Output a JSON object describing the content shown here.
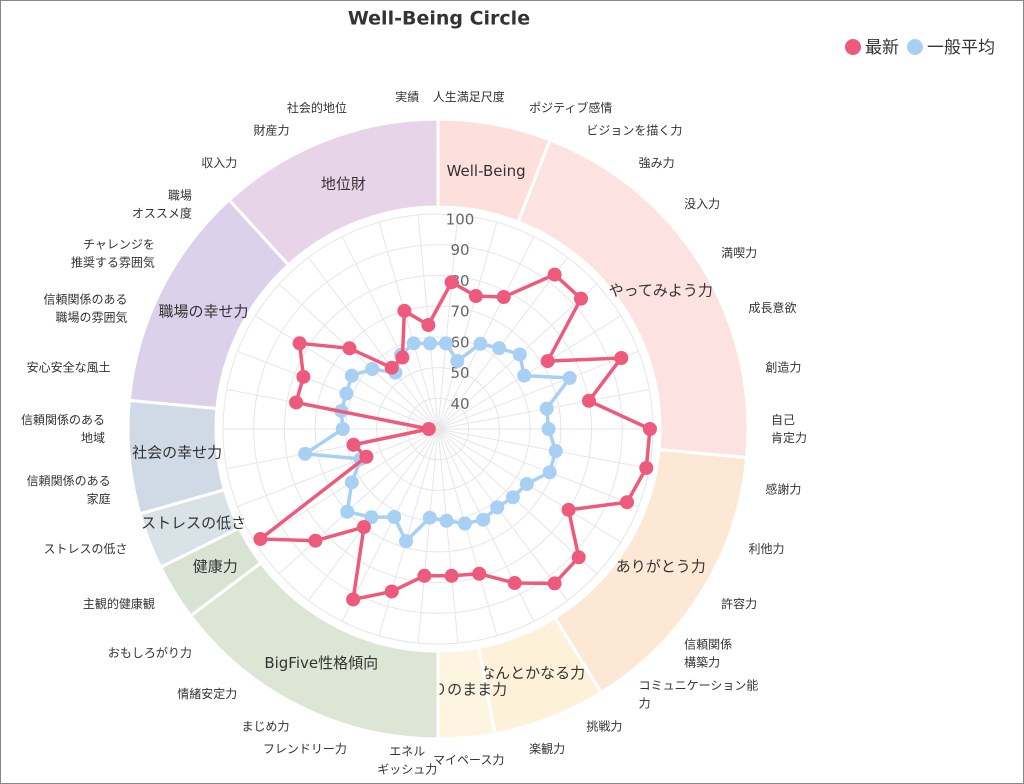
{
  "chart_data": {
    "type": "radar",
    "title": "Well-Being Circle",
    "legend": "top-right",
    "rlim": [
      30,
      100
    ],
    "rticks": [
      40,
      50,
      60,
      70,
      80,
      90,
      100
    ],
    "grid": true,
    "categories": [
      "人生満足尺度",
      "ポジティブ感情",
      "ビジョンを描く力",
      "強み力",
      "没入力",
      "満喫力",
      "成長意欲",
      "創造力",
      "自己\n肯定力",
      "感謝力",
      "利他力",
      "許容力",
      "信頼関係\n構築力",
      "コミュニケーション能\n力",
      "挑戦力",
      "楽観力",
      "マイペース力",
      "エネル\nギッシュ力",
      "フレンドリー力",
      "まじめ力",
      "情緒安定力",
      "おもしろがり力",
      "主観的健康観",
      "ストレスの低さ",
      "信頼関係のある\n家庭",
      "信頼関係のある\n地域",
      "安心安全な風土",
      "信頼関係のある\n職場の雰囲気",
      "チャレンジを\n推奨する雰囲気",
      "職場\nオススメ度",
      "収入力",
      "財産力",
      "社会的地位",
      "実績"
    ],
    "groups": [
      {
        "name": "Well-Being",
        "count": 2,
        "color": "#fde0dc"
      },
      {
        "name": "やってみよう力",
        "count": 7,
        "color": "#fde2e2"
      },
      {
        "name": "ありがとう力",
        "count": 5,
        "color": "#fde8d5"
      },
      {
        "name": "なんとかなる力",
        "count": 2,
        "color": "#fdf1da"
      },
      {
        "name": "ありのまま力",
        "count": 1,
        "color": "#fdf5e0"
      },
      {
        "name": "BigFive性格傾向",
        "count": 5,
        "color": "#dde6d4"
      },
      {
        "name": "健康力",
        "count": 1,
        "color": "#d9e3d3"
      },
      {
        "name": "ストレスの低さ",
        "count": 1,
        "color": "#d9e2e6"
      },
      {
        "name": "社会の幸せ力",
        "count": 2,
        "color": "#d0dae6"
      },
      {
        "name": "職場の幸せ力",
        "count": 4,
        "color": "#dbd1ea"
      },
      {
        "name": "地位財",
        "count": 4,
        "color": "#e8d4e8"
      }
    ],
    "series": [
      {
        "name": "最新",
        "color": "#ee5a7b",
        "values": [
          78,
          75,
          78,
          93,
          93,
          72,
          94,
          80,
          99,
          99,
          96,
          80,
          92,
          93,
          86,
          79,
          78,
          78,
          85,
          92,
          70,
          84,
          98,
          55,
          58,
          33,
          77,
          77,
          83,
          69,
          55,
          56,
          70,
          64
        ]
      },
      {
        "name": "一般平均",
        "color": "#a8d0f4",
        "values": [
          58,
          53,
          61,
          63,
          66,
          63,
          76,
          66,
          66,
          69,
          69,
          64,
          63,
          62,
          63,
          62,
          60,
          59,
          68,
          62,
          66,
          70,
          63,
          57,
          74,
          61,
          62,
          62,
          63,
          59,
          53,
          57,
          59,
          58
        ]
      }
    ]
  }
}
